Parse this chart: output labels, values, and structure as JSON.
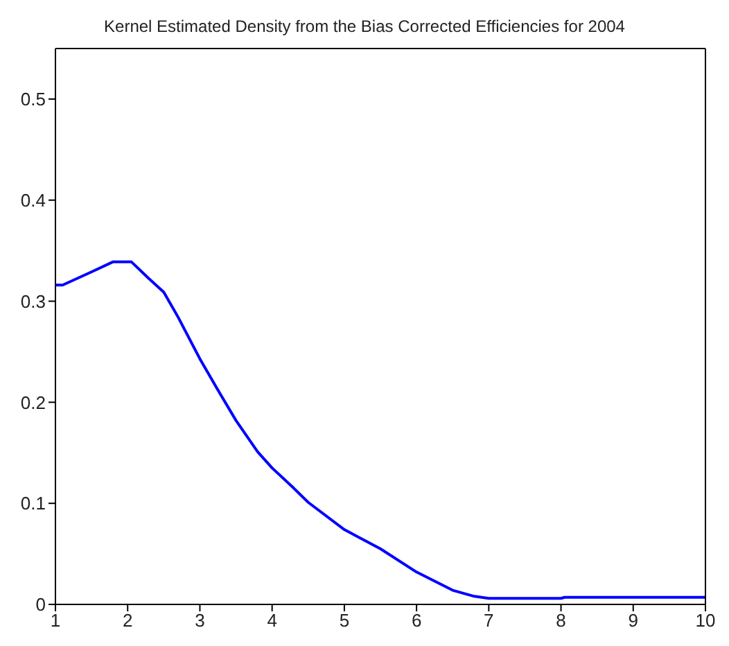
{
  "chart_data": {
    "type": "line",
    "title": "Kernel Estimated Density from the Bias Corrected Efficiencies for 2004",
    "x": [
      1,
      1.1,
      1.5,
      1.8,
      2.05,
      2.3,
      2.5,
      2.7,
      3,
      3.25,
      3.5,
      3.8,
      4,
      4.3,
      4.5,
      5,
      5.5,
      6,
      6.5,
      6.8,
      7,
      8,
      8.05,
      10
    ],
    "series": [
      {
        "color": "#0000ff",
        "values": [
          0.316,
          0.316,
          0.329,
          0.339,
          0.339,
          0.322,
          0.309,
          0.284,
          0.243,
          0.212,
          0.182,
          0.151,
          0.135,
          0.115,
          0.101,
          0.074,
          0.055,
          0.032,
          0.014,
          0.008,
          0.006,
          0.006,
          0.007,
          0.007
        ]
      }
    ],
    "xlim": [
      1,
      10
    ],
    "xticks": [
      1,
      2,
      3,
      4,
      5,
      6,
      7,
      8,
      9,
      10
    ],
    "ylim": [
      0,
      0.55
    ],
    "yticks": [
      0,
      0.1,
      0.2,
      0.3,
      0.4,
      0.5
    ],
    "grid": false,
    "marker": "none",
    "line_style": "solid"
  }
}
